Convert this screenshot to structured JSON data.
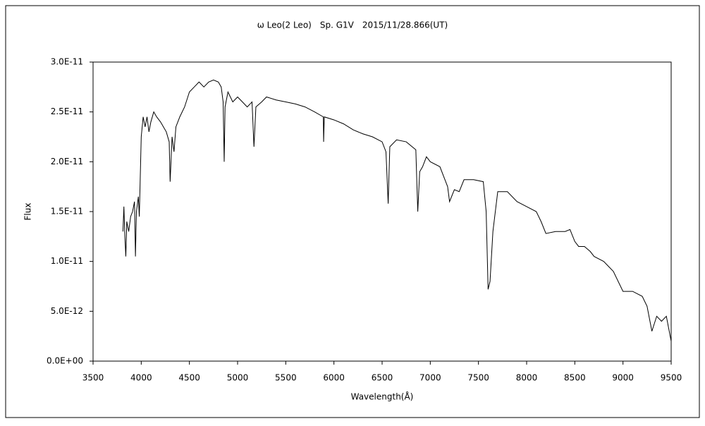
{
  "chart_data": {
    "type": "line",
    "title": "ω Leo(2 Leo)　Sp. G1V　2015/11/28.866(UT)",
    "xlabel": "Wavelength(Å)",
    "ylabel": "Flux",
    "color": "#000000",
    "x": [
      3810,
      3820,
      3830,
      3840,
      3850,
      3870,
      3890,
      3910,
      3930,
      3940,
      3950,
      3970,
      3980,
      4000,
      4020,
      4040,
      4060,
      4080,
      4100,
      4130,
      4160,
      4200,
      4230,
      4260,
      4290,
      4300,
      4320,
      4340,
      4360,
      4400,
      4450,
      4500,
      4550,
      4600,
      4650,
      4700,
      4750,
      4800,
      4830,
      4850,
      4861,
      4870,
      4900,
      4950,
      5000,
      5050,
      5100,
      5150,
      5170,
      5190,
      5250,
      5300,
      5400,
      5500,
      5600,
      5700,
      5800,
      5890,
      5893,
      5900,
      6000,
      6100,
      6200,
      6300,
      6400,
      6500,
      6540,
      6563,
      6580,
      6650,
      6750,
      6850,
      6870,
      6890,
      6920,
      6960,
      7000,
      7100,
      7180,
      7200,
      7250,
      7300,
      7350,
      7450,
      7550,
      7580,
      7600,
      7620,
      7650,
      7700,
      7800,
      7900,
      8000,
      8100,
      8150,
      8200,
      8300,
      8400,
      8450,
      8500,
      8540,
      8600,
      8660,
      8700,
      8800,
      8850,
      8900,
      9000,
      9100,
      9200,
      9250,
      9300,
      9350,
      9400,
      9450,
      9500
    ],
    "values": [
      1.3e-11,
      1.55e-11,
      1.25e-11,
      1.05e-11,
      1.4e-11,
      1.3e-11,
      1.45e-11,
      1.5e-11,
      1.6e-11,
      1.05e-11,
      1.5e-11,
      1.65e-11,
      1.45e-11,
      2.25e-11,
      2.45e-11,
      2.35e-11,
      2.45e-11,
      2.3e-11,
      2.4e-11,
      2.5e-11,
      2.45e-11,
      2.4e-11,
      2.35e-11,
      2.3e-11,
      2.2e-11,
      1.8e-11,
      2.25e-11,
      2.1e-11,
      2.35e-11,
      2.45e-11,
      2.55e-11,
      2.7e-11,
      2.75e-11,
      2.8e-11,
      2.75e-11,
      2.8e-11,
      2.82e-11,
      2.8e-11,
      2.75e-11,
      2.6e-11,
      2e-11,
      2.55e-11,
      2.7e-11,
      2.6e-11,
      2.65e-11,
      2.6e-11,
      2.55e-11,
      2.6e-11,
      2.15e-11,
      2.55e-11,
      2.6e-11,
      2.65e-11,
      2.62e-11,
      2.6e-11,
      2.58e-11,
      2.55e-11,
      2.5e-11,
      2.45e-11,
      2.2e-11,
      2.45e-11,
      2.42e-11,
      2.38e-11,
      2.32e-11,
      2.28e-11,
      2.25e-11,
      2.2e-11,
      2.1e-11,
      1.58e-11,
      2.15e-11,
      2.22e-11,
      2.2e-11,
      2.12e-11,
      1.5e-11,
      1.9e-11,
      1.95e-11,
      2.05e-11,
      2e-11,
      1.95e-11,
      1.75e-11,
      1.6e-11,
      1.72e-11,
      1.7e-11,
      1.82e-11,
      1.82e-11,
      1.8e-11,
      1.5e-11,
      7.2e-12,
      8e-12,
      1.3e-11,
      1.7e-11,
      1.7e-11,
      1.6e-11,
      1.55e-11,
      1.5e-11,
      1.4e-11,
      1.28e-11,
      1.3e-11,
      1.3e-11,
      1.32e-11,
      1.2e-11,
      1.15e-11,
      1.15e-11,
      1.1e-11,
      1.05e-11,
      1e-11,
      9.5e-12,
      9e-12,
      7e-12,
      7e-12,
      6.5e-12,
      5.5e-12,
      3e-12,
      4.5e-12,
      4e-12,
      4.5e-12,
      2e-12
    ],
    "xlim": [
      3500,
      9500
    ],
    "xticks": [
      3500,
      4000,
      4500,
      5000,
      5500,
      6000,
      6500,
      7000,
      7500,
      8000,
      8500,
      9000,
      9500
    ],
    "ylim": [
      0,
      3e-11
    ],
    "yticks": [
      {
        "value": 0,
        "label": "0.0E+00"
      },
      {
        "value": 5e-12,
        "label": "5.0E-12"
      },
      {
        "value": 1e-11,
        "label": "1.0E-11"
      },
      {
        "value": 1.5e-11,
        "label": "1.5E-11"
      },
      {
        "value": 2e-11,
        "label": "2.0E-11"
      },
      {
        "value": 2.5e-11,
        "label": "2.5E-11"
      },
      {
        "value": 3e-11,
        "label": "3.0E-11"
      }
    ],
    "grid": false
  }
}
